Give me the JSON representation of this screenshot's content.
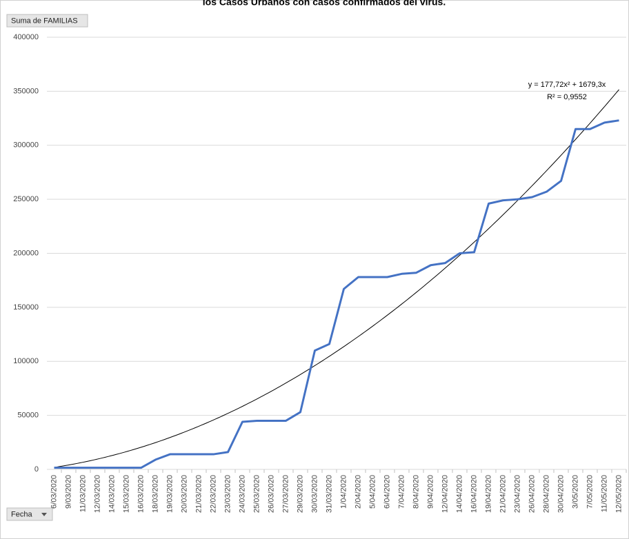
{
  "chart_data": {
    "type": "line",
    "title": "los Casos Urbanos con casos confirmados del virus.",
    "value_field": "Suma de FAMILIAS",
    "axis_field": "Fecha",
    "categories": [
      "6/03/2020",
      "9/03/2020",
      "11/03/2020",
      "12/03/2020",
      "14/03/2020",
      "15/03/2020",
      "16/03/2020",
      "18/03/2020",
      "19/03/2020",
      "20/03/2020",
      "21/03/2020",
      "22/03/2020",
      "23/03/2020",
      "24/03/2020",
      "25/03/2020",
      "26/03/2020",
      "27/03/2020",
      "29/03/2020",
      "30/03/2020",
      "31/03/2020",
      "1/04/2020",
      "2/04/2020",
      "5/04/2020",
      "6/04/2020",
      "7/04/2020",
      "8/04/2020",
      "9/04/2020",
      "12/04/2020",
      "14/04/2020",
      "16/04/2020",
      "19/04/2020",
      "21/04/2020",
      "23/04/2020",
      "26/04/2020",
      "28/04/2020",
      "30/04/2020",
      "3/05/2020",
      "7/05/2020",
      "11/05/2020",
      "12/05/2020"
    ],
    "series": [
      {
        "name": "Suma de FAMILIAS",
        "color": "#4472c4",
        "values": [
          1500,
          1500,
          1500,
          1500,
          1500,
          1500,
          1500,
          9000,
          14000,
          14000,
          14000,
          14000,
          16000,
          44000,
          45000,
          45000,
          45000,
          53000,
          110000,
          116000,
          167000,
          178000,
          178000,
          178000,
          181000,
          182000,
          189000,
          191000,
          200000,
          201000,
          246000,
          249000,
          250000,
          252000,
          257000,
          267000,
          315000,
          315000,
          321000,
          323000
        ]
      }
    ],
    "trendline": {
      "color": "#000000",
      "coefficients": [
        177.72,
        1679.3
      ],
      "equation": "y = 177,72x² + 1679,3x",
      "r_squared": "R² = 0,9552"
    },
    "ylim": [
      0,
      400000
    ],
    "yticks": [
      0,
      50000,
      100000,
      150000,
      200000,
      250000,
      300000,
      350000,
      400000
    ],
    "grid": true
  }
}
